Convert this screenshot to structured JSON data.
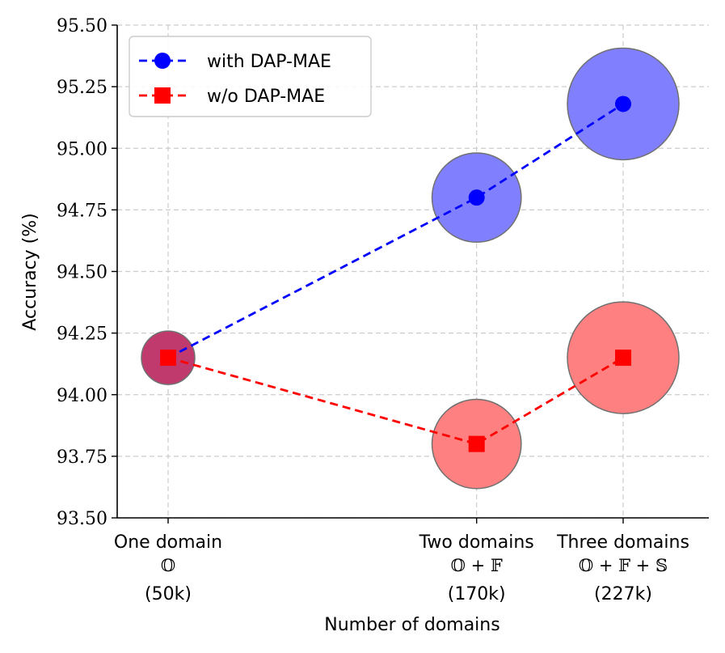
{
  "chart_data": {
    "type": "line",
    "xlabel": "Number of domains",
    "ylabel": "Accuracy (%)",
    "ylim": [
      93.5,
      95.5
    ],
    "yticks": [
      "93.50",
      "93.75",
      "94.00",
      "94.25",
      "94.50",
      "94.75",
      "95.00",
      "95.25",
      "95.50"
    ],
    "ytick_values": [
      93.5,
      93.75,
      94.0,
      94.25,
      94.5,
      94.75,
      95.0,
      95.25,
      95.5
    ],
    "xlim": [
      0,
      227
    ],
    "x": [
      50,
      170,
      227
    ],
    "categories": [
      {
        "name": "One domain",
        "symbol": "𝕆",
        "size": "(50k)"
      },
      {
        "name": "Two domains",
        "symbol": "𝕆 + 𝔽",
        "size": "(170k)"
      },
      {
        "name": "Three domains",
        "symbol": "𝕆 + 𝔽 + 𝕊",
        "size": "(227k)"
      }
    ],
    "series": [
      {
        "name": "with DAP-MAE",
        "color": "#0000ff",
        "bubble_color": "#8080ff",
        "marker": "circle",
        "values": [
          94.15,
          94.8,
          95.18
        ]
      },
      {
        "name": "w/o DAP-MAE",
        "color": "#ff0000",
        "bubble_color": "#ff8080",
        "marker": "square",
        "values": [
          94.15,
          93.8,
          94.15
        ]
      }
    ],
    "overlap_color": "#c03a6e",
    "grid": true,
    "legend": "top-left"
  }
}
